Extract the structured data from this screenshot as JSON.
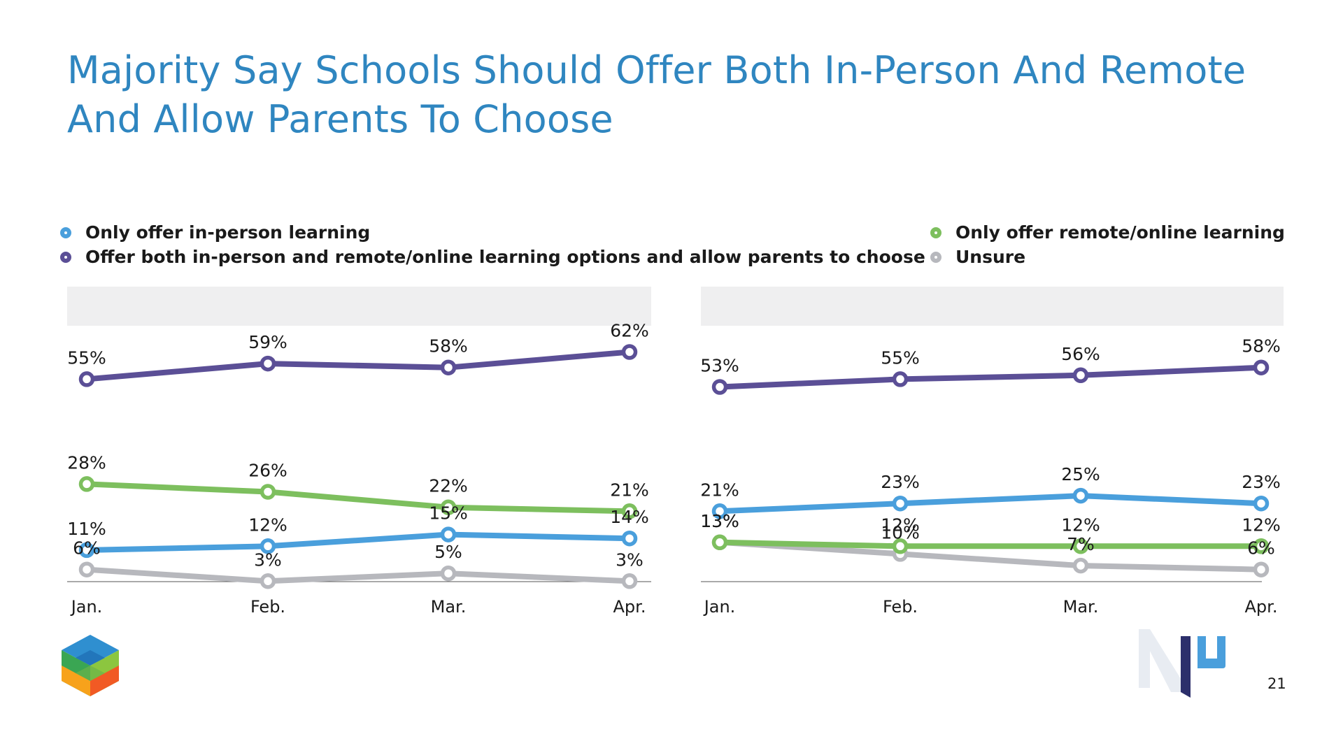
{
  "title": "Majority Say Schools Should Offer Both In-Person And Remote And Allow Parents To Choose",
  "legend": [
    {
      "label": "Only offer in-person learning",
      "color": "#4a9fdc"
    },
    {
      "label": "Offer both in-person and remote/online learning options and allow parents to choose",
      "color": "#5b4f96"
    },
    {
      "label": "Only offer remote/online learning",
      "color": "#7dbf5e"
    },
    {
      "label": "Unsure",
      "color": "#b7b8bd"
    }
  ],
  "chart_data": [
    {
      "type": "line",
      "title": "",
      "categories": [
        "Jan.",
        "Feb.",
        "Mar.",
        "Apr."
      ],
      "ylim": [
        0,
        70
      ],
      "series": [
        {
          "name": "Offer both in-person and remote/online learning options and allow parents to choose",
          "color": "#5b4f96",
          "values": [
            55,
            59,
            58,
            62
          ],
          "labels": [
            "55%",
            "59%",
            "58%",
            "62%"
          ]
        },
        {
          "name": "Only offer remote/online learning",
          "color": "#7dbf5e",
          "values": [
            28,
            26,
            22,
            21
          ],
          "labels": [
            "28%",
            "26%",
            "22%",
            "21%"
          ]
        },
        {
          "name": "Only offer in-person learning",
          "color": "#4a9fdc",
          "values": [
            11,
            12,
            15,
            14
          ],
          "labels": [
            "11%",
            "12%",
            "15%",
            "14%"
          ]
        },
        {
          "name": "Unsure",
          "color": "#b7b8bd",
          "values": [
            6,
            3,
            5,
            3
          ],
          "labels": [
            "6%",
            "3%",
            "5%",
            "3%"
          ]
        }
      ]
    },
    {
      "type": "line",
      "title": "",
      "categories": [
        "Jan.",
        "Feb.",
        "Mar.",
        "Apr."
      ],
      "ylim": [
        0,
        70
      ],
      "series": [
        {
          "name": "Offer both in-person and remote/online learning options and allow parents to choose",
          "color": "#5b4f96",
          "values": [
            53,
            55,
            56,
            58
          ],
          "labels": [
            "53%",
            "55%",
            "56%",
            "58%"
          ]
        },
        {
          "name": "Only offer in-person learning",
          "color": "#4a9fdc",
          "values": [
            21,
            23,
            25,
            23
          ],
          "labels": [
            "21%",
            "23%",
            "25%",
            "23%"
          ]
        },
        {
          "name": "Only offer remote/online learning",
          "color": "#7dbf5e",
          "values": [
            13,
            12,
            12,
            12
          ],
          "labels": [
            "13%",
            "12%",
            "12%",
            "12%"
          ]
        },
        {
          "name": "Unsure",
          "color": "#b7b8bd",
          "values": [
            13,
            10,
            7,
            6
          ],
          "labels": [
            "13%",
            "10%",
            "7%",
            "6%"
          ]
        }
      ]
    }
  ],
  "page_number": "21"
}
